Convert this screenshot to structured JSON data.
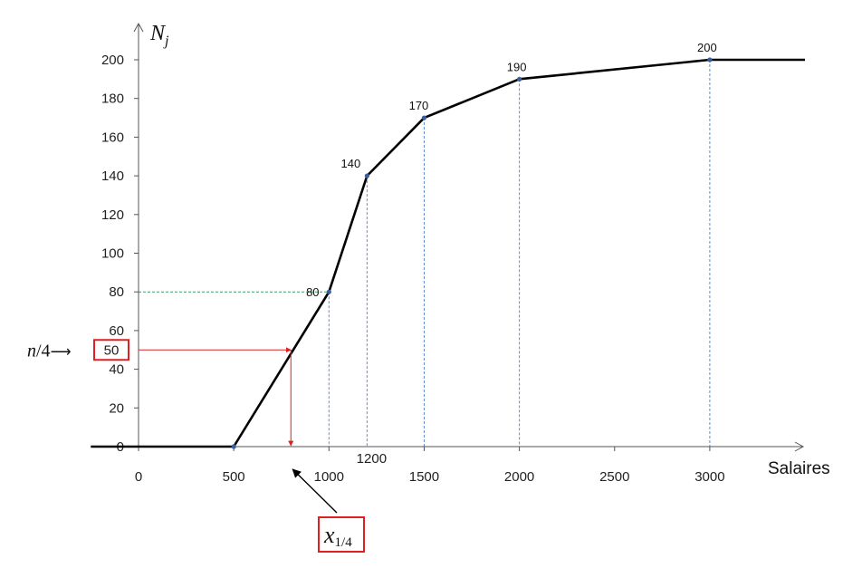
{
  "chart_data": {
    "type": "line",
    "title": "",
    "xlabel": "Salaires",
    "ylabel_base": "N",
    "ylabel_sub": "j",
    "xlim": [
      -250,
      3500
    ],
    "ylim": [
      0,
      200
    ],
    "x_ticks": [
      0,
      500,
      1000,
      1500,
      2000,
      2500,
      3000
    ],
    "x_tick_labels": [
      "0",
      "500",
      "1000",
      "1500",
      "2000",
      "2500",
      "3000"
    ],
    "y_ticks": [
      0,
      20,
      40,
      60,
      80,
      100,
      120,
      140,
      160,
      180,
      200
    ],
    "y_tick_labels": [
      "0",
      "20",
      "40",
      "60",
      "80",
      "100",
      "120",
      "140",
      "160",
      "180",
      "200"
    ],
    "extra_x_label": {
      "x": 1200,
      "text": "1200"
    },
    "series": [
      {
        "x": [
          -250,
          500,
          1000,
          1200,
          1500,
          2000,
          3000,
          3500
        ],
        "y": [
          0,
          0,
          80,
          140,
          170,
          190,
          200,
          200
        ],
        "color": "#000000"
      }
    ],
    "markers": [
      {
        "x": 500,
        "y": 0,
        "label": ""
      },
      {
        "x": 1000,
        "y": 80,
        "label": "80"
      },
      {
        "x": 1200,
        "y": 140,
        "label": "140"
      },
      {
        "x": 1500,
        "y": 170,
        "label": "170"
      },
      {
        "x": 2000,
        "y": 190,
        "label": "190"
      },
      {
        "x": 3000,
        "y": 200,
        "label": "200"
      }
    ],
    "guide_vertical_x": [
      1000,
      1200,
      1500,
      2000,
      3000
    ],
    "guide_horizontal": {
      "y": 80,
      "x_end": 1000
    },
    "quartile": {
      "y": 50,
      "x": 800,
      "y_label": "50",
      "n_label_base": "n",
      "n_label_rest": "/4",
      "arrow_glyph": "⟶",
      "x_label_base": "x",
      "x_label_sub": "1/4"
    },
    "colors": {
      "curve": "#000000",
      "axis": "#555555",
      "marker": "#3a5f9e",
      "guide_blue": "#5b8ed6",
      "guide_green": "#3aa06a",
      "quartile_red": "#e02020"
    }
  }
}
